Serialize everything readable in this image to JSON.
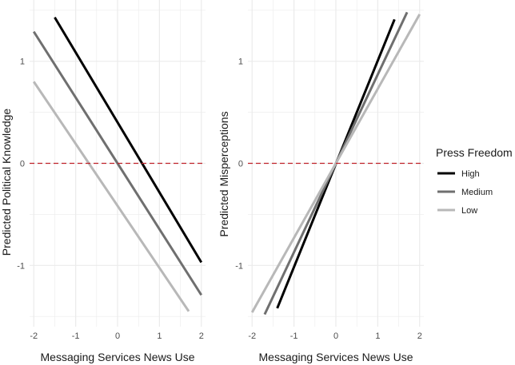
{
  "chart_data": [
    {
      "type": "line",
      "panel": "left",
      "xlabel": "Messaging Services News Use",
      "ylabel": "Predicted Political Knowledge",
      "xlim": [
        -2.1,
        2.1
      ],
      "ylim": [
        -1.6,
        1.6
      ],
      "xticks": [
        -2,
        -1,
        0,
        1,
        2
      ],
      "xtick_labels": [
        "-2",
        "-1",
        "0",
        "1",
        "2"
      ],
      "yticks": [
        -1,
        0,
        1
      ],
      "ytick_labels": [
        "-1",
        "0",
        "1"
      ],
      "reference_line": {
        "y": 0,
        "color": "#c0232a",
        "style": "dashed"
      },
      "series": [
        {
          "name": "High",
          "x": [
            -1.5,
            2.0
          ],
          "y": [
            1.43,
            -0.97
          ]
        },
        {
          "name": "Medium",
          "x": [
            -2.0,
            2.0
          ],
          "y": [
            1.29,
            -1.29
          ]
        },
        {
          "name": "Low",
          "x": [
            -2.0,
            1.7
          ],
          "y": [
            0.8,
            -1.45
          ]
        }
      ]
    },
    {
      "type": "line",
      "panel": "right",
      "xlabel": "Messaging Services News Use",
      "ylabel": "Predicted Misperceptions",
      "xlim": [
        -2.1,
        2.1
      ],
      "ylim": [
        -1.6,
        1.6
      ],
      "xticks": [
        -2,
        -1,
        0,
        1,
        2
      ],
      "xtick_labels": [
        "-2",
        "-1",
        "0",
        "1",
        "2"
      ],
      "yticks": [
        -1,
        0,
        1
      ],
      "ytick_labels": [
        "-1",
        "0",
        "1"
      ],
      "reference_line": {
        "y": 0,
        "color": "#c0232a",
        "style": "dashed"
      },
      "series": [
        {
          "name": "High",
          "x": [
            -1.4,
            1.4
          ],
          "y": [
            -1.42,
            1.41
          ]
        },
        {
          "name": "Medium",
          "x": [
            -1.7,
            1.7
          ],
          "y": [
            -1.48,
            1.48
          ]
        },
        {
          "name": "Low",
          "x": [
            -2.0,
            2.0
          ],
          "y": [
            -1.46,
            1.46
          ]
        }
      ]
    }
  ],
  "legend": {
    "title": "Press Freedom",
    "position": "right",
    "items": [
      {
        "label": "High",
        "color": "#000000"
      },
      {
        "label": "Medium",
        "color": "#6f6f6f"
      },
      {
        "label": "Low",
        "color": "#b8b8b8"
      }
    ]
  },
  "colors": {
    "High": "#000000",
    "Medium": "#6f6f6f",
    "Low": "#b8b8b8",
    "grid": "#ebebeb",
    "reference": "#c0232a"
  }
}
